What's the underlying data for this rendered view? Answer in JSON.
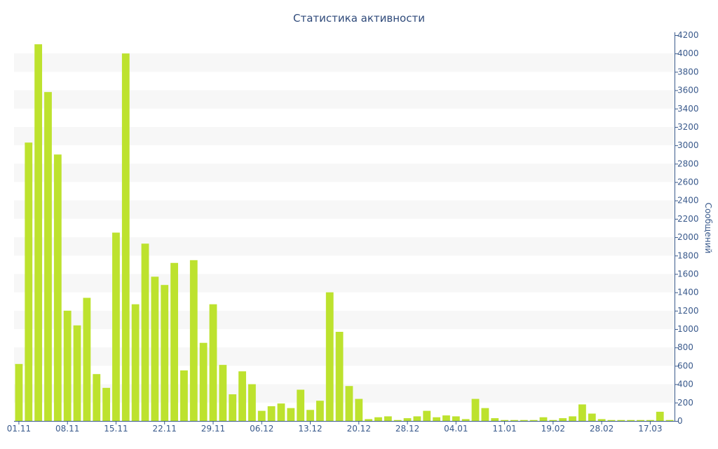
{
  "chart_data": {
    "type": "bar",
    "title": "Статистика активности",
    "xlabel": "",
    "ylabel": "Сообщений",
    "y_axis_side": "right",
    "ylim": [
      0,
      4200
    ],
    "y_ticks": [
      0,
      200,
      400,
      600,
      800,
      1000,
      1200,
      1400,
      1600,
      1800,
      2000,
      2200,
      2400,
      2600,
      2800,
      3000,
      3200,
      3400,
      3600,
      3800,
      4000,
      4200
    ],
    "x_tick_labels": [
      "01.11",
      "08.11",
      "15.11",
      "22.11",
      "29.11",
      "06.12",
      "13.12",
      "20.12",
      "28.12",
      "04.01",
      "11.01",
      "19.02",
      "28.02",
      "17.03"
    ],
    "x_tick_index": [
      0,
      5,
      10,
      15,
      20,
      25,
      30,
      35,
      40,
      45,
      50,
      55,
      60,
      65
    ],
    "bar_color": "#bde22e",
    "band_color": "#f7f7f7",
    "text_color": "#3a5a8c",
    "axis_color": "#3a5a8c",
    "values": [
      620,
      3030,
      4100,
      3580,
      2900,
      1200,
      1040,
      1340,
      510,
      360,
      2050,
      4000,
      1270,
      1930,
      1570,
      1480,
      1720,
      550,
      1750,
      850,
      1270,
      610,
      290,
      540,
      400,
      110,
      160,
      190,
      140,
      340,
      120,
      220,
      1400,
      970,
      380,
      240,
      20,
      40,
      50,
      10,
      30,
      50,
      110,
      40,
      60,
      50,
      20,
      240,
      140,
      30,
      10,
      10,
      10,
      10,
      40,
      10,
      30,
      50,
      180,
      80,
      20,
      10,
      10,
      10,
      10,
      10,
      100,
      10
    ]
  }
}
